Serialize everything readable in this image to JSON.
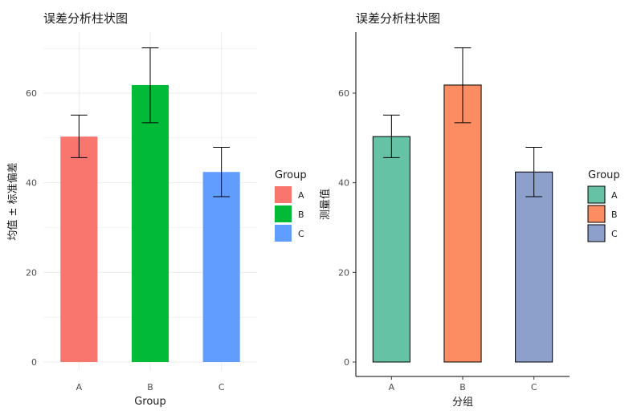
{
  "chart_data": [
    {
      "type": "bar",
      "title": "误差分析柱状图",
      "xlabel": "Group",
      "ylabel": "均值 ± 标准偏差",
      "categories": [
        "A",
        "B",
        "C"
      ],
      "values": [
        50.3,
        61.8,
        42.4
      ],
      "error_low": [
        45.6,
        53.4,
        36.9
      ],
      "error_high": [
        55.1,
        70.1,
        47.9
      ],
      "ylim": [
        0,
        70
      ],
      "yticks": [
        0,
        20,
        40,
        60
      ],
      "grid": true,
      "bar_outline": false,
      "colors": [
        "#F8766D",
        "#00BA38",
        "#619CFF"
      ],
      "legend": {
        "title": "Group",
        "position": "right",
        "labels": [
          "A",
          "B",
          "C"
        ]
      }
    },
    {
      "type": "bar",
      "title": "误差分析柱状图",
      "xlabel": "分组",
      "ylabel": "测量值",
      "categories": [
        "A",
        "B",
        "C"
      ],
      "values": [
        50.3,
        61.8,
        42.4
      ],
      "error_low": [
        45.6,
        53.4,
        36.9
      ],
      "error_high": [
        55.1,
        70.1,
        47.9
      ],
      "ylim": [
        0,
        70
      ],
      "yticks": [
        0,
        20,
        40,
        60
      ],
      "grid": false,
      "bar_outline": true,
      "colors": [
        "#66C2A5",
        "#FC8D62",
        "#8DA0CB"
      ],
      "legend": {
        "title": "Group",
        "position": "right",
        "labels": [
          "A",
          "B",
          "C"
        ]
      }
    }
  ]
}
